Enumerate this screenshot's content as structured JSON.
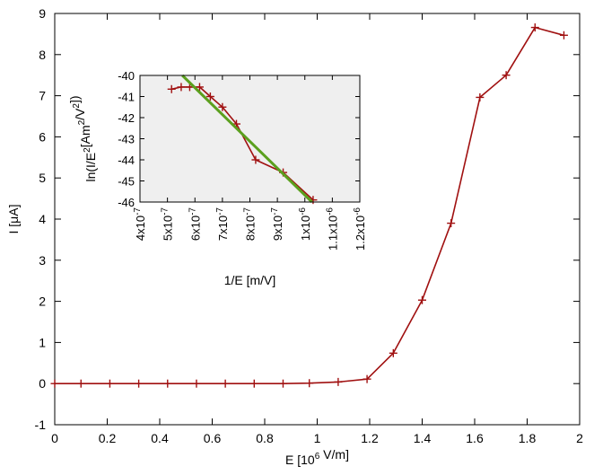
{
  "chart_data": [
    {
      "type": "line",
      "xlabel": "E [10⁶ V/m]",
      "ylabel": "I [μA]",
      "xlim": [
        0,
        2
      ],
      "ylim": [
        -1,
        9
      ],
      "xticks": [
        0,
        0.2,
        0.4,
        0.6,
        0.8,
        1,
        1.2,
        1.4,
        1.6,
        1.8,
        2
      ],
      "xtick_labels": [
        "0",
        "0.2",
        "0.4",
        "0.6",
        "0.8",
        "1",
        "1.2",
        "1.4",
        "1.6",
        "1.8",
        "2"
      ],
      "yticks": [
        -1,
        0,
        1,
        2,
        3,
        4,
        5,
        6,
        7,
        8,
        9
      ],
      "ytick_labels": [
        "-1",
        "0",
        "1",
        "2",
        "3",
        "4",
        "5",
        "6",
        "7",
        "8",
        "9"
      ],
      "grid": false,
      "series": [
        {
          "color": "#a01010",
          "marker": "plus",
          "x": [
            0,
            0.1,
            0.21,
            0.32,
            0.43,
            0.54,
            0.65,
            0.76,
            0.87,
            0.97,
            1.08,
            1.19,
            1.29,
            1.4,
            1.51,
            1.62,
            1.72,
            1.83,
            1.94
          ],
          "y": [
            0,
            0,
            0,
            0,
            0,
            0,
            0,
            0,
            0,
            0.01,
            0.04,
            0.11,
            0.74,
            2.03,
            3.9,
            6.96,
            7.5,
            8.66,
            8.47
          ]
        }
      ]
    },
    {
      "type": "line",
      "inset": true,
      "xlabel": "1/E [m/V]",
      "ylabel": "ln(I/E²[Am²/V²])",
      "xlim": [
        4e-07,
        1.2e-06
      ],
      "ylim": [
        -46,
        -40
      ],
      "xticks": [
        4e-07,
        5e-07,
        6e-07,
        7e-07,
        8e-07,
        9e-07,
        1e-06,
        1.1e-06,
        1.2e-06
      ],
      "xtick_labels": [
        {
          "mantissa": "4x10",
          "exp": "-7"
        },
        {
          "mantissa": "5x10",
          "exp": "-7"
        },
        {
          "mantissa": "6x10",
          "exp": "-7"
        },
        {
          "mantissa": "7x10",
          "exp": "-7"
        },
        {
          "mantissa": "8x10",
          "exp": "-7"
        },
        {
          "mantissa": "9x10",
          "exp": "-7"
        },
        {
          "mantissa": "1x10",
          "exp": "-6"
        },
        {
          "mantissa": "1.1x10",
          "exp": "-6"
        },
        {
          "mantissa": "1.2x10",
          "exp": "-6"
        }
      ],
      "yticks": [
        -46,
        -45,
        -44,
        -43,
        -42,
        -41,
        -40
      ],
      "ytick_labels": [
        "-46",
        "-45",
        "-44",
        "-43",
        "-42",
        "-41",
        "-40"
      ],
      "background": "#efefef",
      "series": [
        {
          "color": "#a01010",
          "marker": "plus",
          "x": [
            5.15e-07,
            5.5e-07,
            5.81e-07,
            6.17e-07,
            6.56e-07,
            7e-07,
            7.51e-07,
            8.21e-07,
            9.21e-07,
            1.03e-06
          ],
          "y": [
            -40.65,
            -40.55,
            -40.55,
            -40.55,
            -41.0,
            -41.5,
            -42.3,
            -44.0,
            -44.6,
            -45.9
          ]
        },
        {
          "color": "#5ba01e",
          "marker": "none",
          "x": [
            5.54e-07,
            1.026e-06
          ],
          "y": [
            -40,
            -46
          ]
        }
      ]
    }
  ]
}
